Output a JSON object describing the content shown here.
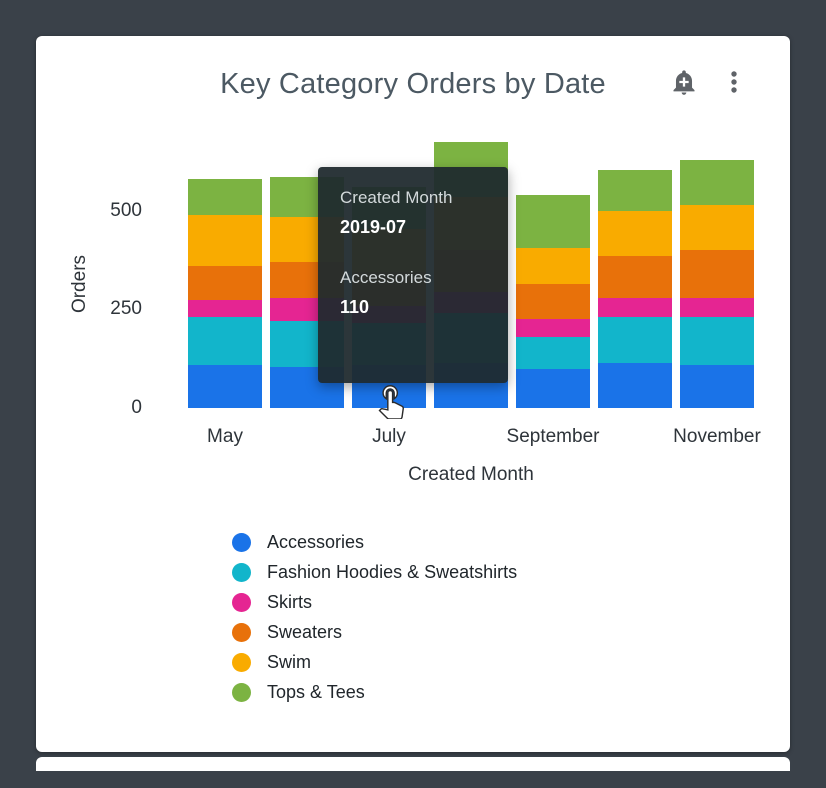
{
  "card": {
    "title": "Key Category Orders by Date"
  },
  "toolbar": {
    "alert_icon": "add-alert",
    "menu_icon": "kebab-menu"
  },
  "tooltip": {
    "dimension_label": "Created Month",
    "dimension_value": "2019-07",
    "measure_label": "Accessories",
    "measure_value": "110"
  },
  "chart_data": {
    "type": "bar",
    "stacked": true,
    "title": "Key Category Orders by Date",
    "xlabel": "Created Month",
    "ylabel": "Orders",
    "ylim": [
      0,
      700
    ],
    "y_ticks": [
      0,
      250,
      500
    ],
    "grid": false,
    "legend_position": "bottom-left",
    "categories": [
      "2019-05",
      "2019-06",
      "2019-07",
      "2019-08",
      "2019-09",
      "2019-10",
      "2019-11"
    ],
    "x_tick_labels": [
      "May",
      "July",
      "September",
      "November"
    ],
    "x_tick_indices": [
      0,
      2,
      4,
      6
    ],
    "series": [
      {
        "name": "Accessories",
        "color": "#1A73E8",
        "values": [
          110,
          105,
          110,
          115,
          100,
          115,
          110
        ]
      },
      {
        "name": "Fashion Hoodies & Sweatshirts",
        "color": "#12B5CB",
        "values": [
          120,
          115,
          105,
          125,
          80,
          115,
          120
        ]
      },
      {
        "name": "Skirts",
        "color": "#E52592",
        "values": [
          45,
          60,
          45,
          55,
          45,
          50,
          50
        ]
      },
      {
        "name": "Sweaters",
        "color": "#E8710A",
        "values": [
          85,
          90,
          85,
          105,
          90,
          105,
          120
        ]
      },
      {
        "name": "Swim",
        "color": "#F9AB00",
        "values": [
          130,
          115,
          110,
          135,
          90,
          115,
          115
        ]
      },
      {
        "name": "Tops & Tees",
        "color": "#7CB342",
        "values": [
          90,
          100,
          105,
          140,
          135,
          105,
          115
        ]
      }
    ]
  }
}
